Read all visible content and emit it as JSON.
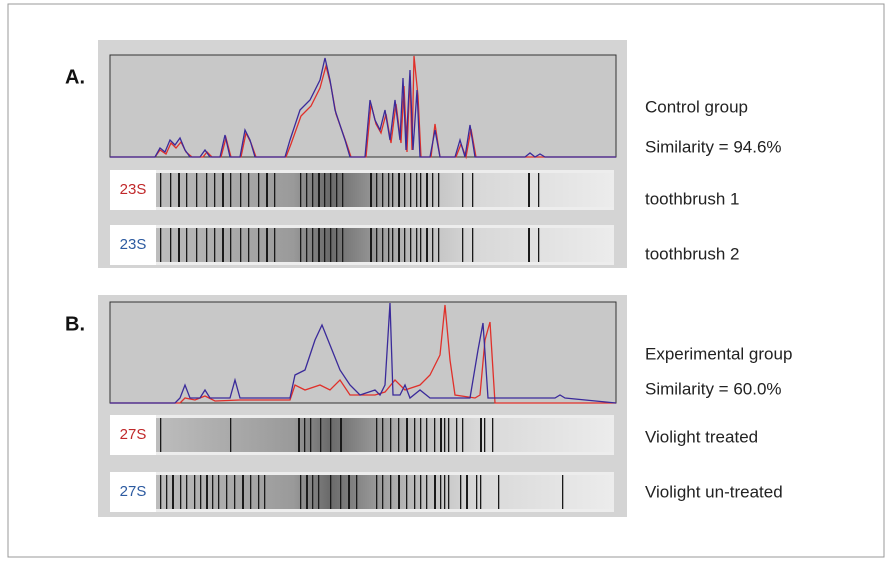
{
  "panels": [
    {
      "label": "A.",
      "group": "Control group",
      "similarity": "Similarity = 94.6%",
      "lanes": [
        {
          "marker": "23S",
          "name": "toothbrush 1"
        },
        {
          "marker": "23S",
          "name": "toothbrush 2"
        }
      ]
    },
    {
      "label": "B.",
      "group": "Experimental group",
      "similarity": "Similarity = 60.0%",
      "lanes": [
        {
          "marker": "27S",
          "name": "Violight treated"
        },
        {
          "marker": "27S",
          "name": "Violight un-treated"
        }
      ]
    }
  ]
}
